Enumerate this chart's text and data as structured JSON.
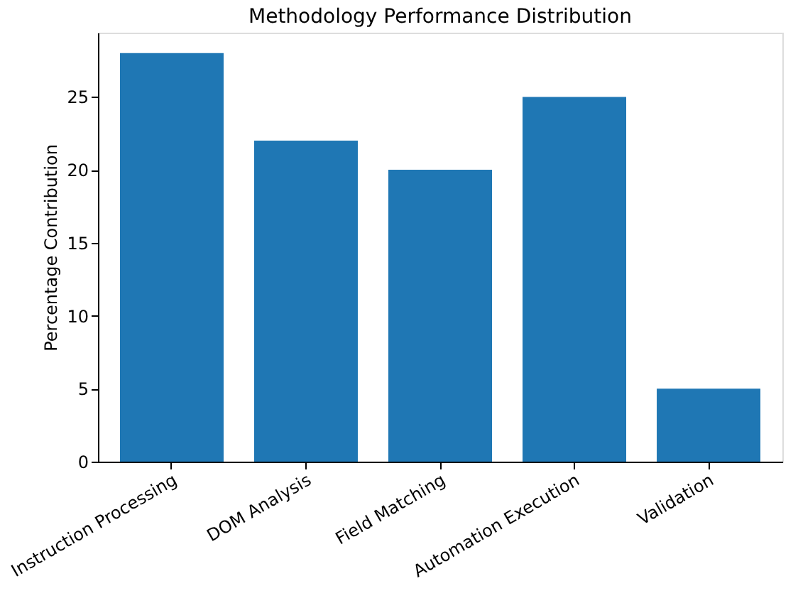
{
  "chart_data": {
    "type": "bar",
    "title": "Methodology Performance Distribution",
    "categories": [
      "Instruction Processing",
      "DOM Analysis",
      "Field Matching",
      "Automation Execution",
      "Validation"
    ],
    "values": [
      28,
      22,
      20,
      25,
      5
    ],
    "color": "#1f77b4",
    "ylabel": "Percentage Contribution",
    "ylim": [
      0,
      29.4
    ],
    "yticks": [
      0,
      5,
      10,
      15,
      20,
      25
    ],
    "grid": false
  }
}
